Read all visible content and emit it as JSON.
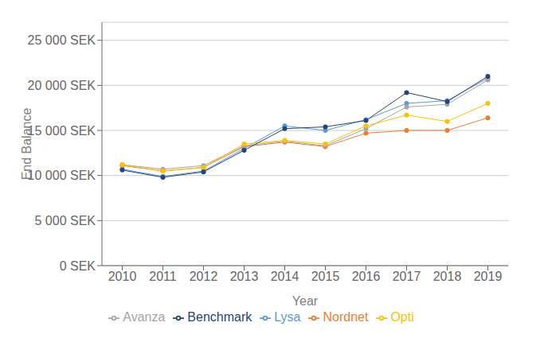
{
  "chart_data": {
    "type": "line",
    "xlabel": "Year",
    "ylabel": "End Balance",
    "x": [
      2010,
      2011,
      2012,
      2013,
      2014,
      2015,
      2016,
      2017,
      2018,
      2019
    ],
    "series": [
      {
        "name": "Lysa",
        "color": "#5b9bd5",
        "values": [
          10700,
          9900,
          10500,
          13000,
          15500,
          15000,
          16200,
          18000,
          18300,
          20800
        ]
      },
      {
        "name": "Nordnet",
        "color": "#ed7d31",
        "values": [
          11100,
          10500,
          10900,
          13200,
          13700,
          13200,
          14700,
          15000,
          15000,
          16400
        ]
      },
      {
        "name": "Avanza",
        "color": "#a5a5a5",
        "values": [
          11200,
          10700,
          11100,
          13300,
          13800,
          13300,
          15200,
          17600,
          17900,
          20600
        ]
      },
      {
        "name": "Opti",
        "color": "#ffc000",
        "values": [
          11200,
          10500,
          10900,
          13500,
          13900,
          13500,
          15500,
          16700,
          16000,
          18000
        ]
      },
      {
        "name": "Benchmark",
        "color": "#264478",
        "values": [
          10600,
          9800,
          10400,
          12800,
          15200,
          15400,
          16100,
          19200,
          18200,
          21000
        ]
      }
    ],
    "xlim": [
      2009.5,
      2019.5
    ],
    "xticks": [
      2010,
      2011,
      2012,
      2013,
      2014,
      2015,
      2016,
      2017,
      2018,
      2019
    ],
    "ylim": [
      0,
      27000
    ],
    "yticks": [
      {
        "value": 0,
        "label": "0 SEK"
      },
      {
        "value": 5000,
        "label": "5 000 SEK"
      },
      {
        "value": 10000,
        "label": "10 000 SEK"
      },
      {
        "value": 15000,
        "label": "15 000 SEK"
      },
      {
        "value": 20000,
        "label": "20 000 SEK"
      },
      {
        "value": 25000,
        "label": "25 000 SEK"
      }
    ],
    "grid": true,
    "legend": "bottom",
    "marker": "circle"
  }
}
